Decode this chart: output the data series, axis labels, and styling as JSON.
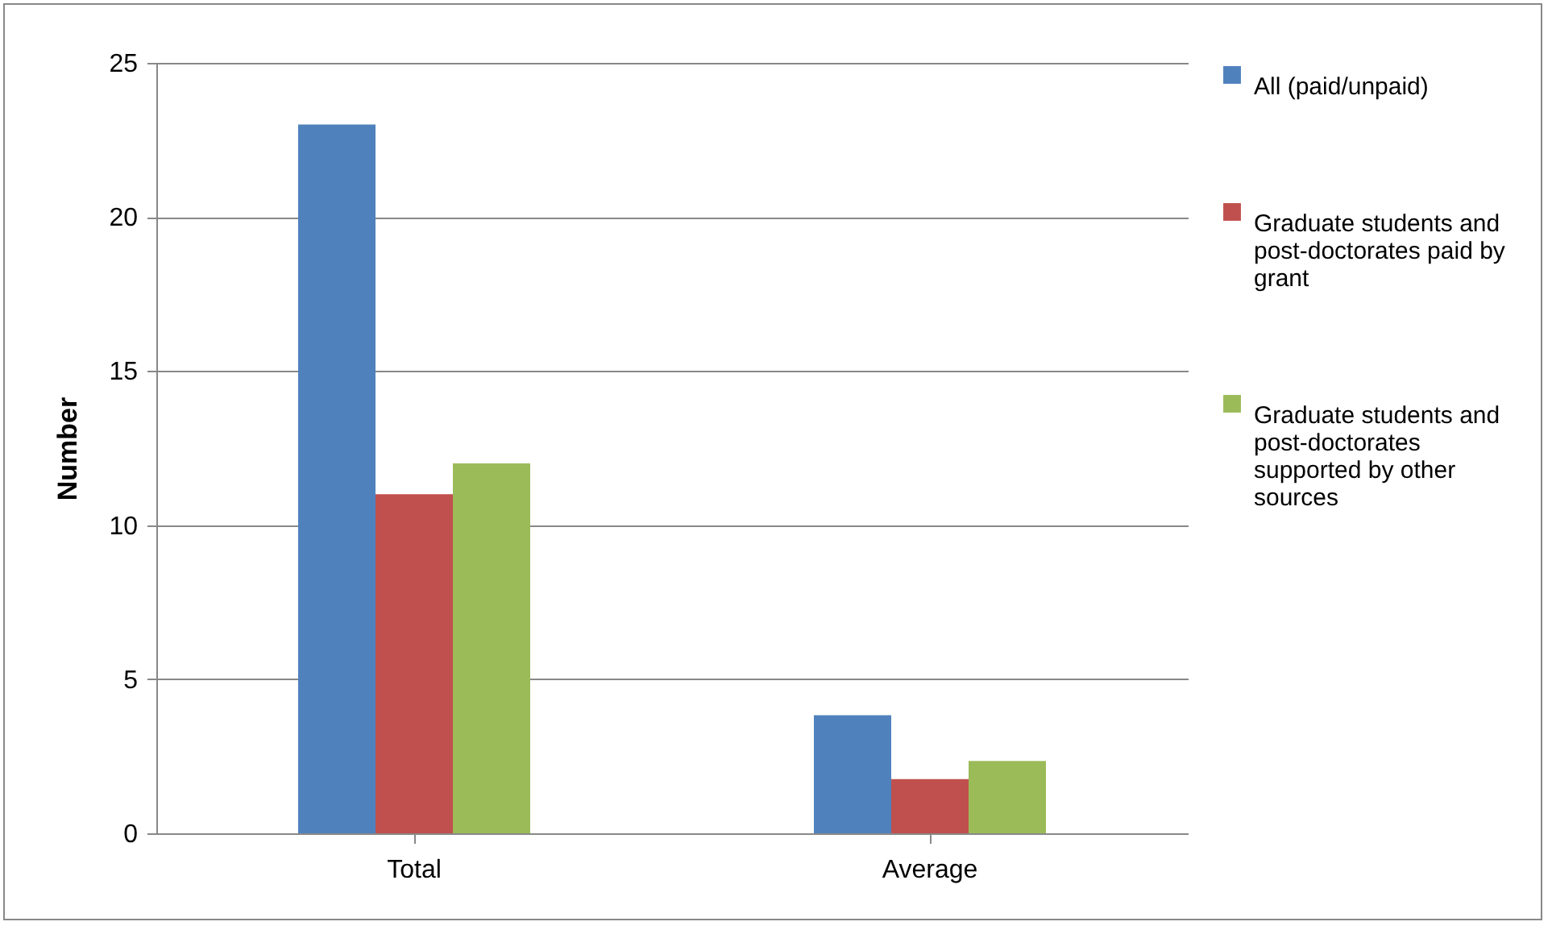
{
  "chart_data": {
    "type": "bar",
    "ylabel": "Number",
    "categories": [
      "Total",
      "Average"
    ],
    "series": [
      {
        "name": "All (paid/unpaid)",
        "color": "#4f81bd",
        "values": [
          23,
          3.83
        ]
      },
      {
        "name": "Graduate students and post-doctorates paid by grant",
        "color": "#c0504d",
        "values": [
          11,
          1.76
        ]
      },
      {
        "name": "Graduate students and post-doctorates supported by other sources",
        "color": "#9bbb59",
        "values": [
          12,
          2.35
        ]
      }
    ],
    "ylim": [
      0,
      25
    ],
    "yticks": [
      0,
      5,
      10,
      15,
      20,
      25
    ],
    "grid": "y",
    "legend": "right"
  }
}
